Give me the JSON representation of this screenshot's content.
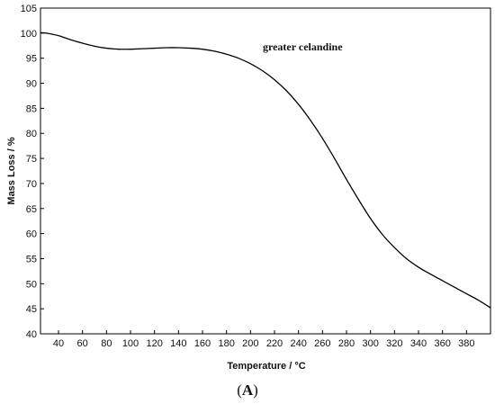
{
  "chart_data": {
    "type": "line",
    "title": "",
    "xlabel": "Temperature / °C",
    "ylabel": "Mass Loss / %",
    "xlim": [
      25,
      400
    ],
    "ylim": [
      40,
      105
    ],
    "x_ticks": [
      40,
      60,
      80,
      100,
      120,
      140,
      160,
      180,
      200,
      220,
      240,
      260,
      280,
      300,
      320,
      340,
      360,
      380
    ],
    "y_ticks": [
      40,
      45,
      50,
      55,
      60,
      65,
      70,
      75,
      80,
      85,
      90,
      95,
      100,
      105
    ],
    "grid": false,
    "annotation": "greater celandine",
    "series": [
      {
        "name": "",
        "color": "#000000",
        "x": [
          25,
          30,
          40,
          50,
          60,
          70,
          80,
          90,
          100,
          110,
          120,
          130,
          140,
          150,
          160,
          170,
          180,
          190,
          200,
          210,
          220,
          230,
          240,
          250,
          260,
          270,
          280,
          290,
          300,
          310,
          320,
          330,
          340,
          350,
          360,
          370,
          380,
          390,
          400
        ],
        "y": [
          100.1,
          100.0,
          99.5,
          98.7,
          98.0,
          97.4,
          97.0,
          96.8,
          96.8,
          96.9,
          97.0,
          97.1,
          97.1,
          97.0,
          96.8,
          96.4,
          95.8,
          95.0,
          93.9,
          92.5,
          90.7,
          88.5,
          85.8,
          82.6,
          79.0,
          75.0,
          70.8,
          66.8,
          63.0,
          59.8,
          57.2,
          55.0,
          53.3,
          51.9,
          50.6,
          49.3,
          48.0,
          46.7,
          45.2
        ]
      }
    ]
  },
  "caption": {
    "open": "(",
    "letter": "A",
    "close": ")"
  }
}
